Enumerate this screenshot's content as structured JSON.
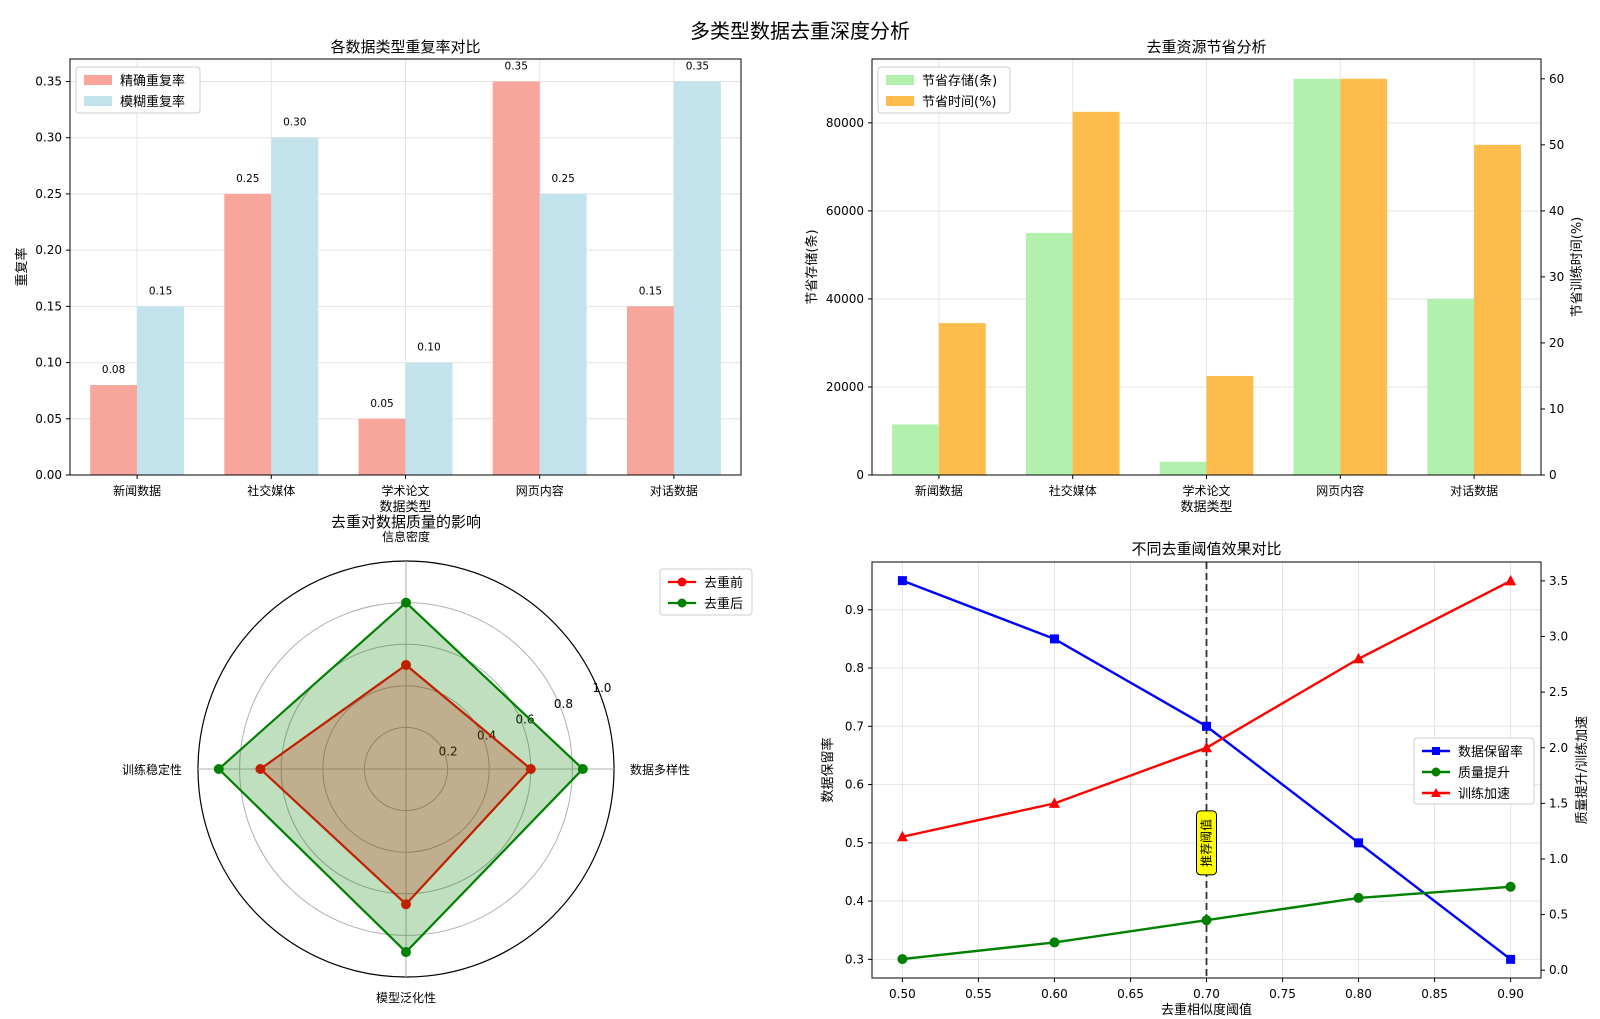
{
  "figure_title": "多类型数据去重深度分析",
  "chart_data": [
    {
      "type": "bar",
      "title": "各数据类型重复率对比",
      "xlabel": "数据类型",
      "ylabel": "重复率",
      "categories": [
        "新闻数据",
        "社交媒体",
        "学术论文",
        "网页内容",
        "对话数据"
      ],
      "ylim": [
        0,
        0.37
      ],
      "yticks": [
        0.0,
        0.05,
        0.1,
        0.15,
        0.2,
        0.25,
        0.3,
        0.35
      ],
      "ytick_labels": [
        "0.00",
        "0.05",
        "0.10",
        "0.15",
        "0.20",
        "0.25",
        "0.30",
        "0.35"
      ],
      "series": [
        {
          "name": "精确重复率",
          "color": "#f8a59c",
          "values": [
            0.08,
            0.25,
            0.05,
            0.35,
            0.15
          ],
          "labels": [
            "0.08",
            "0.25",
            "0.05",
            "0.35",
            "0.15"
          ]
        },
        {
          "name": "模糊重复率",
          "color": "#c3e3ec",
          "values": [
            0.15,
            0.3,
            0.1,
            0.25,
            0.35
          ],
          "labels": [
            "0.15",
            "0.30",
            "0.10",
            "0.25",
            "0.35"
          ]
        }
      ],
      "legend": "top-left",
      "grid": true
    },
    {
      "type": "bar",
      "title": "去重资源节省分析",
      "xlabel": "数据类型",
      "ylabel": "节省存储(条)",
      "ylabel_right": "节省训练时间(%)",
      "categories": [
        "新闻数据",
        "社交媒体",
        "学术论文",
        "网页内容",
        "对话数据"
      ],
      "ylim": [
        0,
        94500
      ],
      "yticks": [
        0,
        20000,
        40000,
        60000,
        80000
      ],
      "ytick_labels": [
        "0",
        "20000",
        "40000",
        "60000",
        "80000"
      ],
      "ylim_right": [
        0,
        63
      ],
      "yticks_right": [
        0,
        10,
        20,
        30,
        40,
        50,
        60
      ],
      "ytick_labels_right": [
        "0",
        "10",
        "20",
        "30",
        "40",
        "50",
        "60"
      ],
      "series": [
        {
          "name": "节省存储(条)",
          "axis": "left",
          "color": "#b2f0ad",
          "values": [
            11500,
            55000,
            3000,
            90000,
            40000
          ]
        },
        {
          "name": "节省时间(%)",
          "axis": "right",
          "color": "#fdbc4c",
          "values": [
            23,
            55,
            15,
            60,
            50
          ]
        }
      ],
      "legend": "top-left",
      "grid": true
    },
    {
      "type": "radar",
      "title": "去重对数据质量的影响",
      "axes": [
        "信息密度",
        "数据多样性",
        "模型泛化性",
        "训练稳定性"
      ],
      "rmax": 1.0,
      "rticks": [
        0.2,
        0.4,
        0.6,
        0.8,
        1.0
      ],
      "rtick_labels": [
        "0.2",
        "0.4",
        "0.6",
        "0.8",
        "1.0"
      ],
      "series": [
        {
          "name": "去重前",
          "color": "#ff0000",
          "values": [
            0.5,
            0.6,
            0.65,
            0.7
          ]
        },
        {
          "name": "去重后",
          "color": "#008000",
          "values": [
            0.8,
            0.85,
            0.88,
            0.9
          ]
        }
      ],
      "legend": "top-right"
    },
    {
      "type": "line",
      "title": "不同去重阈值效果对比",
      "xlabel": "去重相似度阈值",
      "ylabel": "数据保留率",
      "ylabel_right": "质量提升/训练加速",
      "x": [
        0.5,
        0.6,
        0.7,
        0.8,
        0.9
      ],
      "xlim": [
        0.48,
        0.92
      ],
      "xticks": [
        0.5,
        0.55,
        0.6,
        0.65,
        0.7,
        0.75,
        0.8,
        0.85,
        0.9
      ],
      "xtick_labels": [
        "0.50",
        "0.55",
        "0.60",
        "0.65",
        "0.70",
        "0.75",
        "0.80",
        "0.85",
        "0.90"
      ],
      "ylim": [
        0.268,
        0.982
      ],
      "yticks": [
        0.3,
        0.4,
        0.5,
        0.6,
        0.7,
        0.8,
        0.9
      ],
      "ytick_labels": [
        "0.3",
        "0.4",
        "0.5",
        "0.6",
        "0.7",
        "0.8",
        "0.9"
      ],
      "ylim_right": [
        -0.07,
        3.67
      ],
      "yticks_right": [
        0.0,
        0.5,
        1.0,
        1.5,
        2.0,
        2.5,
        3.0,
        3.5
      ],
      "ytick_labels_right": [
        "0.0",
        "0.5",
        "1.0",
        "1.5",
        "2.0",
        "2.5",
        "3.0",
        "3.5"
      ],
      "series": [
        {
          "name": "数据保留率",
          "axis": "left",
          "color": "#0000ff",
          "marker": "square",
          "values": [
            0.95,
            0.85,
            0.7,
            0.5,
            0.3
          ]
        },
        {
          "name": "质量提升",
          "axis": "right",
          "color": "#008000",
          "marker": "circle",
          "values": [
            0.1,
            0.25,
            0.45,
            0.65,
            0.75
          ]
        },
        {
          "name": "训练加速",
          "axis": "right",
          "color": "#ff0000",
          "marker": "triangle",
          "values": [
            1.2,
            1.5,
            2.0,
            2.8,
            3.5
          ]
        }
      ],
      "annotation": {
        "x": 0.7,
        "text": "推荐阈值",
        "color": "#ffff00"
      },
      "legend": "center-right",
      "grid": true
    }
  ]
}
